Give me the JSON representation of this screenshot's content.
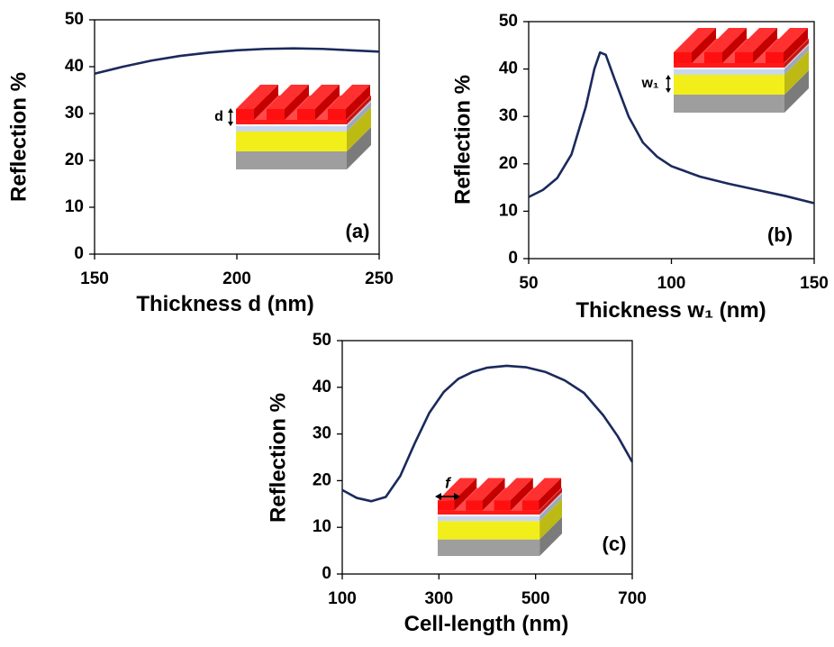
{
  "chart_data": [
    {
      "type": "line",
      "x_label": "Thickness d (nm)",
      "y_label": "Reflection %",
      "annotation": "(a)",
      "inset_label": "d",
      "x": [
        150,
        160,
        170,
        180,
        190,
        200,
        210,
        220,
        230,
        240,
        250
      ],
      "values": [
        38.5,
        40,
        41.3,
        42.3,
        43,
        43.5,
        43.8,
        43.9,
        43.8,
        43.5,
        43.2
      ],
      "color": "#1b2a5c",
      "xlim": [
        150,
        250
      ],
      "xticks": [
        150,
        200,
        250
      ],
      "ylim": [
        0,
        50
      ],
      "yticks": [
        0,
        10,
        20,
        30,
        40,
        50
      ]
    },
    {
      "type": "line",
      "x_label": "Thickness w₁ (nm)",
      "y_label": "Reflection %",
      "annotation": "(b)",
      "inset_label": "w₁",
      "x": [
        50,
        55,
        60,
        65,
        70,
        73,
        75,
        77,
        80,
        85,
        90,
        95,
        100,
        110,
        120,
        130,
        140,
        150
      ],
      "values": [
        13,
        14.5,
        17,
        22,
        32,
        40,
        43.5,
        43,
        38,
        30,
        24.5,
        21.5,
        19.5,
        17.3,
        15.8,
        14.5,
        13.2,
        11.7
      ],
      "color": "#1b2a5c",
      "xlim": [
        50,
        150
      ],
      "xticks": [
        50,
        100,
        150
      ],
      "ylim": [
        0,
        50
      ],
      "yticks": [
        0,
        10,
        20,
        30,
        40,
        50
      ]
    },
    {
      "type": "line",
      "x_label": "Cell-length (nm)",
      "y_label": "Reflection %",
      "annotation": "(c)",
      "inset_label": "f",
      "x": [
        100,
        130,
        160,
        190,
        220,
        250,
        280,
        310,
        340,
        370,
        400,
        440,
        480,
        520,
        560,
        600,
        640,
        670,
        700
      ],
      "values": [
        18,
        16.3,
        15.6,
        16.5,
        21,
        28,
        34.5,
        39,
        41.8,
        43.3,
        44.2,
        44.6,
        44.3,
        43.3,
        41.5,
        38.8,
        34,
        29.5,
        24
      ],
      "color": "#1b2a5c",
      "xlim": [
        100,
        700
      ],
      "xticks": [
        100,
        300,
        500,
        700
      ],
      "ylim": [
        0,
        50
      ],
      "yticks": [
        0,
        10,
        20,
        30,
        40,
        50
      ]
    }
  ]
}
